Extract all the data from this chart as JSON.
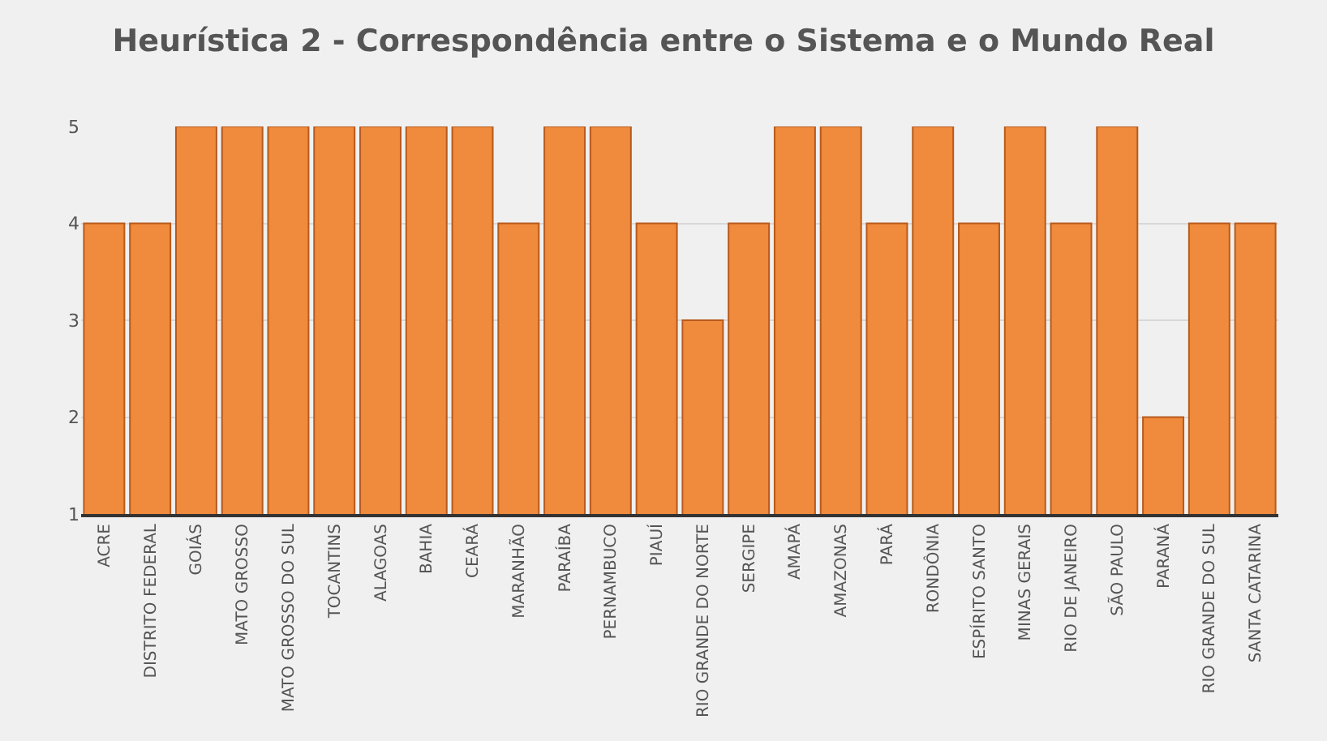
{
  "chart_data": {
    "type": "bar",
    "title": "Heurística 2 - Correspondência entre o Sistema e o Mundo Real",
    "categories": [
      "ACRE",
      "DISTRITO FEDERAL",
      "GOIÁS",
      "MATO GROSSO",
      "MATO GROSSO DO SUL",
      "TOCANTINS",
      "ALAGOAS",
      "BAHIA",
      "CEARÁ",
      "MARANHÃO",
      "PARAÍBA",
      "PERNAMBUCO",
      "PIAUÍ",
      "RIO GRANDE DO NORTE",
      "SERGIPE",
      "AMAPÁ",
      "AMAZONAS",
      "PARÁ",
      "RONDÔNIA",
      "ESPÍRITO SANTO",
      "MINAS GERAIS",
      "RIO DE JANEIRO",
      "SÃO PAULO",
      "PARANÁ",
      "RIO GRANDE DO SUL",
      "SANTA CATARINA"
    ],
    "values": [
      4,
      4,
      5,
      5,
      5,
      5,
      5,
      5,
      5,
      4,
      5,
      5,
      4,
      3,
      4,
      5,
      5,
      4,
      5,
      4,
      5,
      4,
      5,
      2,
      4,
      4
    ],
    "color": "#f08a3c",
    "ylim": [
      1,
      5
    ],
    "yticks": [
      1,
      2,
      3,
      4,
      5
    ],
    "grid": "y"
  }
}
